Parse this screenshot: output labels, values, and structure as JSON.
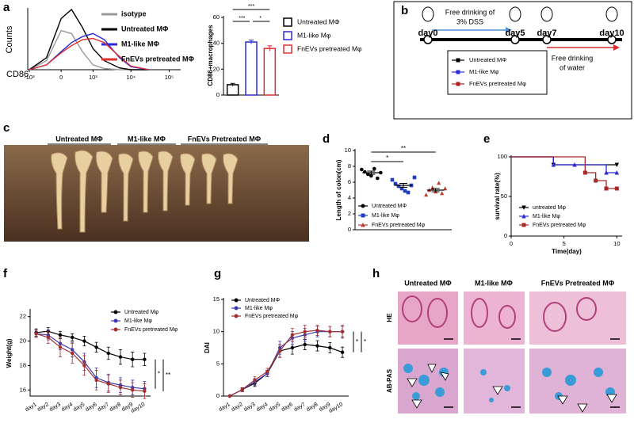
{
  "panel_labels": [
    "a",
    "b",
    "c",
    "d",
    "e",
    "f",
    "g",
    "h"
  ],
  "chart_data": [
    {
      "type": "line",
      "xscale": "asinh",
      "xlabel": "CD86",
      "ylabel": "Counts",
      "x": [
        -1000,
        -300,
        0,
        200,
        500,
        1000,
        2000,
        5000,
        10000,
        30000
      ],
      "xlim": [
        -1100,
        200000
      ],
      "xticks": [
        {
          "value": -1000,
          "label": "-10³"
        },
        0,
        {
          "value": 1000,
          "label": "10³"
        },
        {
          "value": 10000,
          "label": "10⁴"
        },
        {
          "value": 100000,
          "label": "10⁵"
        }
      ],
      "ylim": [
        0,
        100
      ],
      "series": [
        {
          "name": "isotype",
          "color": "#999999",
          "values": [
            0,
            15,
            65,
            60,
            30,
            8,
            2,
            0,
            0,
            0
          ]
        },
        {
          "name": "Untreated MΦ",
          "color": "#000000",
          "values": [
            0,
            20,
            85,
            100,
            70,
            35,
            15,
            3,
            0,
            0
          ]
        },
        {
          "name": "M1-like MΦ",
          "color": "#2b2bd6",
          "values": [
            0,
            8,
            30,
            45,
            55,
            60,
            50,
            20,
            5,
            0
          ]
        },
        {
          "name": "FnEVs pretreated MΦ",
          "color": "#e03030",
          "values": [
            0,
            8,
            28,
            40,
            50,
            52,
            45,
            22,
            6,
            0
          ]
        }
      ]
    },
    {
      "type": "bar",
      "ylabel": "CD86+macrophages",
      "categories": [
        "Untreated MΦ",
        "M1-like Mφ",
        "FnEVs pretreated Mφ"
      ],
      "colors": [
        "#000000",
        "#2b2bd6",
        "#e03030"
      ],
      "values": [
        8,
        41,
        36
      ],
      "errors": [
        1,
        1.5,
        2
      ],
      "ylim": [
        0,
        60
      ],
      "yticks": [
        0,
        20,
        40,
        60
      ],
      "annotations": [
        "***",
        "***",
        "*"
      ]
    },
    {
      "type": "dot",
      "ylabel": "Length of colon(cm)",
      "ylim": [
        0,
        10
      ],
      "yticks": [
        0,
        2,
        4,
        6,
        8,
        10
      ],
      "series": [
        {
          "name": "Untreated MΦ",
          "color": "#000000",
          "marker": "circle",
          "values": [
            7.6,
            7.3,
            7.0,
            6.8,
            7.7,
            6.5,
            7.2
          ],
          "mean": 7.2,
          "error": 0.2
        },
        {
          "name": "M1-like Mφ",
          "color": "#1f3fbf",
          "marker": "square",
          "values": [
            6.3,
            5.8,
            5.5,
            5.2,
            4.9,
            4.7,
            5.6,
            6.6
          ],
          "mean": 5.6,
          "error": 0.25
        },
        {
          "name": "FnEVs pretreated Mφ",
          "color": "#c0392b",
          "marker": "triangle",
          "values": [
            4.4,
            5.0,
            5.3,
            4.8,
            5.9,
            4.6,
            5.2
          ],
          "mean": 5.0,
          "error": 0.2
        }
      ],
      "annotations": [
        "*",
        "**"
      ]
    },
    {
      "type": "step",
      "ylabel": "survival rate(%)",
      "xlabel": "Time(day)",
      "xlim": [
        0,
        10.5
      ],
      "xticks": [
        0,
        5,
        10
      ],
      "ylim": [
        0,
        100
      ],
      "yticks": [
        0,
        50,
        100
      ],
      "series": [
        {
          "name": "untreated Mφ",
          "color": "#000000",
          "marker": "triangle-down",
          "x": [
            0,
            4,
            10
          ],
          "values": [
            100,
            90,
            90
          ]
        },
        {
          "name": "M1-like Mφ",
          "color": "#2b2bd6",
          "marker": "triangle",
          "x": [
            0,
            4,
            6,
            9,
            10
          ],
          "values": [
            100,
            90,
            90,
            80,
            80
          ]
        },
        {
          "name": "FnEVs pretreated Mφ",
          "color": "#a52a2a",
          "marker": "square",
          "x": [
            0,
            7,
            8,
            9,
            10
          ],
          "values": [
            100,
            80,
            70,
            60,
            60
          ]
        }
      ]
    },
    {
      "type": "line",
      "ylabel": "Weight(g)",
      "categories": [
        "day1",
        "day2",
        "day3",
        "day4",
        "day5",
        "day6",
        "day7",
        "day8",
        "day9",
        "day10"
      ],
      "ylim": [
        15.5,
        22.5
      ],
      "yticks": [
        16,
        18,
        20,
        22
      ],
      "series": [
        {
          "name": "Untreated Mφ",
          "color": "#000000",
          "values": [
            20.7,
            20.8,
            20.5,
            20.3,
            20.0,
            19.5,
            19.0,
            18.7,
            18.5,
            18.5
          ],
          "errors": [
            0.3,
            0.3,
            0.3,
            0.3,
            0.4,
            0.4,
            0.5,
            0.6,
            0.6,
            0.5
          ]
        },
        {
          "name": "M1-like Mφ",
          "color": "#3b3bb0",
          "values": [
            20.6,
            20.5,
            19.8,
            19.3,
            18.3,
            17.0,
            16.6,
            16.4,
            16.2,
            16.1
          ],
          "errors": [
            0.3,
            0.4,
            0.5,
            0.6,
            0.7,
            0.8,
            0.7,
            0.6,
            0.6,
            0.6
          ]
        },
        {
          "name": "FnEVs pretreated Mφ",
          "color": "#a03030",
          "values": [
            20.6,
            20.3,
            19.5,
            19.0,
            18.0,
            16.8,
            16.5,
            16.2,
            16.0,
            15.9
          ],
          "errors": [
            0.3,
            0.5,
            0.8,
            0.8,
            0.8,
            0.8,
            0.7,
            0.6,
            0.6,
            0.6
          ]
        }
      ],
      "annotations": [
        "*",
        "**"
      ]
    },
    {
      "type": "line",
      "ylabel": "DAI",
      "categories": [
        "day1",
        "day2",
        "day3",
        "day4",
        "day5",
        "day6",
        "day7",
        "day8",
        "day9",
        "day10"
      ],
      "ylim": [
        0,
        15
      ],
      "yticks": [
        0,
        5,
        10,
        15
      ],
      "series": [
        {
          "name": "Untreated MΦ",
          "color": "#000000",
          "values": [
            0,
            1,
            2,
            3.5,
            7,
            7.5,
            8,
            7.8,
            7.5,
            6.8
          ],
          "errors": [
            0,
            0.3,
            0.5,
            0.5,
            1,
            1,
            0.8,
            0.8,
            0.8,
            0.8
          ]
        },
        {
          "name": "M1-like Mφ",
          "color": "#3b3bb0",
          "values": [
            0,
            1,
            2.2,
            3.5,
            7.5,
            9,
            9.5,
            10,
            10,
            10
          ],
          "errors": [
            0,
            0.3,
            0.5,
            0.5,
            1,
            1,
            1,
            0.8,
            0.8,
            0.8
          ]
        },
        {
          "name": "FnEVs pretreated Mφ",
          "color": "#a03030",
          "values": [
            0,
            1,
            2.5,
            3.8,
            7,
            9.5,
            10,
            10.2,
            10,
            10
          ],
          "errors": [
            0,
            0.3,
            0.5,
            0.5,
            1,
            1,
            1,
            0.8,
            0.8,
            1
          ]
        }
      ],
      "annotations": [
        "*",
        "*"
      ]
    }
  ],
  "panel_b": {
    "days": [
      "day0",
      "day5",
      "day7",
      "day10"
    ],
    "dss": [
      "Free drinking of",
      "3% DSS"
    ],
    "water": [
      "Free drinking",
      "of water"
    ],
    "legend": [
      {
        "name": "Untreated MΦ",
        "color": "#000000"
      },
      {
        "name": "M1-like Mφ",
        "color": "#2b2bd6"
      },
      {
        "name": "FnEVs pretreated Mφ",
        "color": "#b02020"
      }
    ]
  },
  "panel_c": {
    "labels": [
      "Untreated MΦ",
      "M1-like MΦ",
      "FnEVs Pretreated MΦ"
    ]
  },
  "panel_h": {
    "columns": [
      "Untreated MΦ",
      "M1-like MΦ",
      "FnEVs Pretreated MΦ"
    ],
    "rows": [
      "HE",
      "AB-PAS"
    ]
  }
}
